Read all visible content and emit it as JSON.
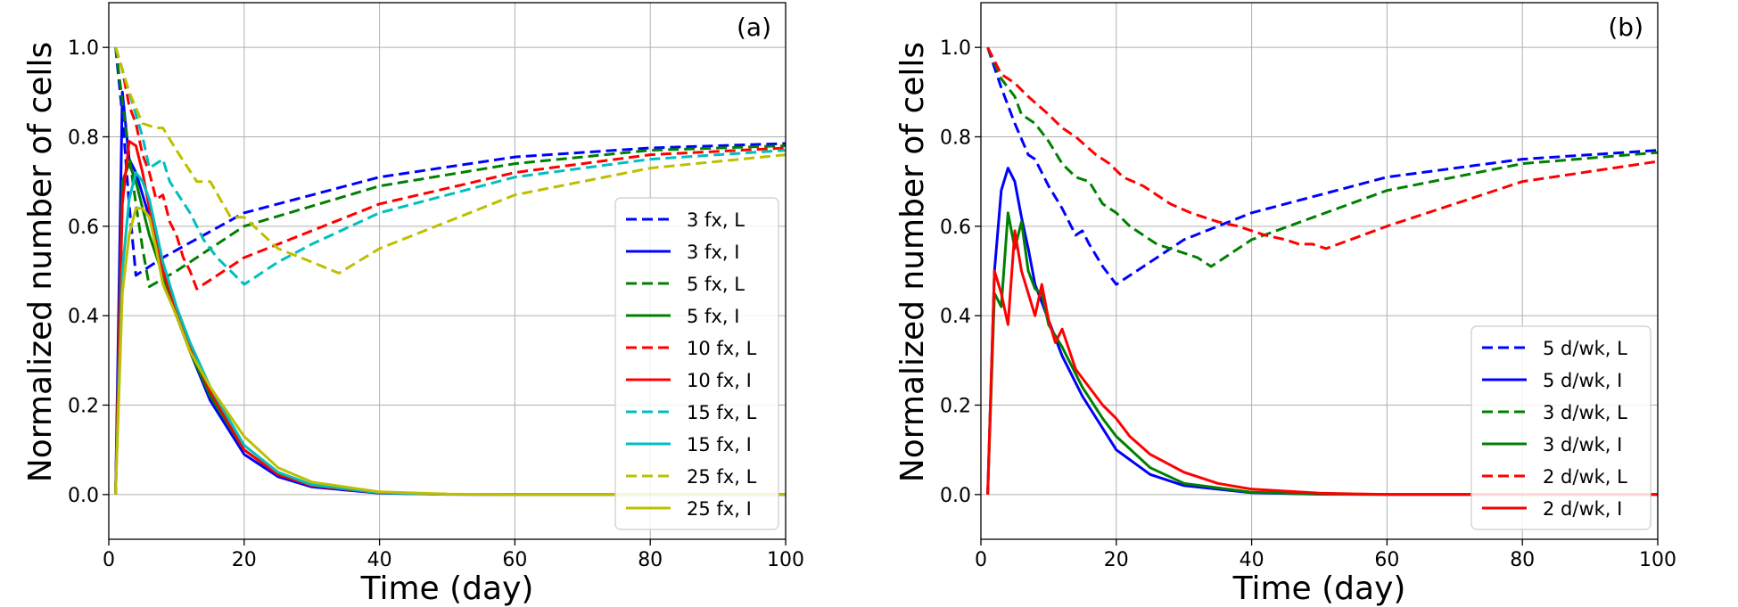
{
  "chart_data": [
    {
      "type": "line",
      "panel_label": "(a)",
      "xlabel": "Time (day)",
      "ylabel": "Normalized number of cells",
      "xlim": [
        0,
        100
      ],
      "ylim": [
        -0.1,
        1.1
      ],
      "xticks": [
        0,
        20,
        40,
        60,
        80,
        100
      ],
      "yticks": [
        0.0,
        0.2,
        0.4,
        0.6,
        0.8,
        1.0
      ],
      "xtick_labels": [
        "0",
        "20",
        "40",
        "60",
        "80",
        "100"
      ],
      "ytick_labels": [
        "0.0",
        "0.2",
        "0.4",
        "0.6",
        "0.8",
        "1.0"
      ],
      "grid": true,
      "legend_position": "center-right",
      "series": [
        {
          "name": "3 fx, L",
          "color": "#0000ff",
          "dash": true,
          "x": [
            1,
            2,
            3,
            4,
            8,
            20,
            40,
            60,
            80,
            100
          ],
          "y": [
            1.0,
            0.85,
            0.65,
            0.49,
            0.53,
            0.63,
            0.71,
            0.755,
            0.775,
            0.785
          ]
        },
        {
          "name": "3 fx, I",
          "color": "#0000ff",
          "dash": false,
          "x": [
            1,
            2,
            3,
            4,
            6,
            8,
            10,
            12,
            15,
            20,
            25,
            30,
            40,
            50,
            60,
            100
          ],
          "y": [
            0.0,
            0.9,
            0.75,
            0.72,
            0.62,
            0.5,
            0.4,
            0.32,
            0.21,
            0.09,
            0.04,
            0.017,
            0.003,
            0.0005,
            0.0,
            0.0
          ]
        },
        {
          "name": "5 fx, L",
          "color": "#008000",
          "dash": true,
          "x": [
            1,
            2,
            3,
            4,
            5,
            6,
            10,
            20,
            40,
            60,
            80,
            100
          ],
          "y": [
            1.0,
            0.88,
            0.76,
            0.65,
            0.55,
            0.465,
            0.5,
            0.6,
            0.69,
            0.74,
            0.77,
            0.78
          ]
        },
        {
          "name": "5 fx, I",
          "color": "#008000",
          "dash": false,
          "x": [
            1,
            2,
            3,
            4,
            5,
            6,
            8,
            10,
            12,
            15,
            20,
            25,
            30,
            40,
            50,
            60,
            100
          ],
          "y": [
            0.0,
            0.7,
            0.74,
            0.7,
            0.64,
            0.58,
            0.49,
            0.4,
            0.32,
            0.22,
            0.1,
            0.045,
            0.02,
            0.004,
            0.0006,
            0.0,
            0.0
          ]
        },
        {
          "name": "10 fx, L",
          "color": "#ff0000",
          "dash": true,
          "x": [
            1,
            2,
            3,
            4,
            5,
            6,
            7,
            8,
            9,
            10,
            11,
            12,
            13,
            20,
            40,
            60,
            80,
            100
          ],
          "y": [
            1.0,
            0.95,
            0.87,
            0.83,
            0.76,
            0.72,
            0.66,
            0.67,
            0.61,
            0.58,
            0.53,
            0.5,
            0.46,
            0.53,
            0.65,
            0.72,
            0.76,
            0.775
          ]
        },
        {
          "name": "10 fx, I",
          "color": "#ff0000",
          "dash": false,
          "x": [
            1,
            2,
            3,
            4,
            5,
            6,
            8,
            10,
            12,
            15,
            20,
            25,
            30,
            40,
            50,
            60,
            100
          ],
          "y": [
            0.0,
            0.65,
            0.79,
            0.78,
            0.72,
            0.64,
            0.5,
            0.41,
            0.33,
            0.23,
            0.1,
            0.045,
            0.02,
            0.004,
            0.0006,
            0.0,
            0.0
          ]
        },
        {
          "name": "15 fx, L",
          "color": "#00bfbf",
          "dash": true,
          "x": [
            1,
            3,
            5,
            6,
            8,
            9,
            12,
            14,
            16,
            18,
            20,
            25,
            30,
            40,
            60,
            80,
            100
          ],
          "y": [
            1.0,
            0.9,
            0.8,
            0.73,
            0.75,
            0.7,
            0.63,
            0.57,
            0.53,
            0.5,
            0.47,
            0.52,
            0.56,
            0.63,
            0.71,
            0.75,
            0.77
          ]
        },
        {
          "name": "15 fx, I",
          "color": "#00bfbf",
          "dash": false,
          "x": [
            1,
            2,
            3,
            4,
            5,
            6,
            8,
            10,
            12,
            15,
            20,
            25,
            30,
            40,
            50,
            60,
            100
          ],
          "y": [
            0.0,
            0.5,
            0.66,
            0.72,
            0.7,
            0.66,
            0.52,
            0.42,
            0.34,
            0.24,
            0.11,
            0.05,
            0.022,
            0.004,
            0.0006,
            0.0,
            0.0
          ]
        },
        {
          "name": "25 fx, L",
          "color": "#bfbf00",
          "dash": true,
          "x": [
            1,
            3,
            5,
            7,
            8,
            10,
            13,
            15,
            18,
            20,
            25,
            30,
            34,
            40,
            60,
            80,
            100
          ],
          "y": [
            1.0,
            0.9,
            0.83,
            0.82,
            0.82,
            0.77,
            0.7,
            0.7,
            0.62,
            0.62,
            0.55,
            0.52,
            0.495,
            0.55,
            0.67,
            0.73,
            0.76
          ]
        },
        {
          "name": "25 fx, I",
          "color": "#bfbf00",
          "dash": false,
          "x": [
            1,
            2,
            3,
            4,
            5,
            6,
            7,
            8,
            10,
            12,
            15,
            20,
            25,
            30,
            40,
            50,
            60,
            100
          ],
          "y": [
            0.0,
            0.45,
            0.58,
            0.64,
            0.64,
            0.62,
            0.55,
            0.47,
            0.4,
            0.32,
            0.24,
            0.13,
            0.06,
            0.028,
            0.006,
            0.001,
            0.0,
            0.0
          ]
        }
      ]
    },
    {
      "type": "line",
      "panel_label": "(b)",
      "xlabel": "Time (day)",
      "ylabel": "Normalized number of cells",
      "xlim": [
        0,
        100
      ],
      "ylim": [
        -0.1,
        1.1
      ],
      "xticks": [
        0,
        20,
        40,
        60,
        80,
        100
      ],
      "yticks": [
        0.0,
        0.2,
        0.4,
        0.6,
        0.8,
        1.0
      ],
      "xtick_labels": [
        "0",
        "20",
        "40",
        "60",
        "80",
        "100"
      ],
      "ytick_labels": [
        "0.0",
        "0.2",
        "0.4",
        "0.6",
        "0.8",
        "1.0"
      ],
      "grid": true,
      "legend_position": "lower-right",
      "series": [
        {
          "name": "5 d/wk, L",
          "color": "#0000ff",
          "dash": true,
          "x": [
            1,
            3,
            5,
            7,
            8,
            10,
            12,
            14,
            15,
            16,
            18,
            20,
            25,
            30,
            40,
            60,
            80,
            100
          ],
          "y": [
            1.0,
            0.91,
            0.83,
            0.76,
            0.75,
            0.69,
            0.64,
            0.58,
            0.59,
            0.56,
            0.51,
            0.47,
            0.52,
            0.57,
            0.63,
            0.71,
            0.75,
            0.77
          ]
        },
        {
          "name": "5 d/wk, I",
          "color": "#0000ff",
          "dash": false,
          "x": [
            1,
            2,
            3,
            4,
            5,
            6,
            7,
            8,
            10,
            12,
            15,
            20,
            25,
            30,
            40,
            50,
            60,
            100
          ],
          "y": [
            0.0,
            0.5,
            0.68,
            0.73,
            0.7,
            0.62,
            0.55,
            0.47,
            0.39,
            0.31,
            0.22,
            0.1,
            0.045,
            0.02,
            0.004,
            0.0006,
            0.0,
            0.0
          ]
        },
        {
          "name": "3 d/wk, L",
          "color": "#008000",
          "dash": true,
          "x": [
            1,
            3,
            5,
            6,
            8,
            10,
            12,
            14,
            16,
            18,
            20,
            22,
            24,
            26,
            28,
            30,
            32,
            34,
            40,
            60,
            80,
            100
          ],
          "y": [
            1.0,
            0.93,
            0.89,
            0.85,
            0.83,
            0.79,
            0.74,
            0.71,
            0.7,
            0.65,
            0.63,
            0.6,
            0.58,
            0.56,
            0.55,
            0.54,
            0.53,
            0.51,
            0.57,
            0.68,
            0.74,
            0.765
          ]
        },
        {
          "name": "3 d/wk, I",
          "color": "#008000",
          "dash": false,
          "x": [
            1,
            2,
            3,
            4,
            5,
            6,
            7,
            8,
            9,
            10,
            12,
            15,
            18,
            20,
            25,
            30,
            40,
            50,
            60,
            100
          ],
          "y": [
            0.0,
            0.45,
            0.42,
            0.63,
            0.55,
            0.61,
            0.5,
            0.46,
            0.45,
            0.38,
            0.33,
            0.24,
            0.17,
            0.13,
            0.06,
            0.025,
            0.005,
            0.001,
            0.0,
            0.0
          ]
        },
        {
          "name": "2 d/wk, L",
          "color": "#ff0000",
          "dash": true,
          "x": [
            1,
            3,
            5,
            7,
            10,
            12,
            14,
            17,
            19,
            21,
            24,
            26,
            28,
            31,
            33,
            35,
            38,
            40,
            42,
            45,
            47,
            49,
            51,
            60,
            80,
            100
          ],
          "y": [
            1.0,
            0.94,
            0.92,
            0.89,
            0.85,
            0.82,
            0.8,
            0.76,
            0.74,
            0.71,
            0.69,
            0.67,
            0.65,
            0.63,
            0.62,
            0.61,
            0.6,
            0.59,
            0.58,
            0.57,
            0.56,
            0.56,
            0.55,
            0.6,
            0.7,
            0.745
          ]
        },
        {
          "name": "2 d/wk, I",
          "color": "#ff0000",
          "dash": false,
          "x": [
            1,
            2,
            3,
            4,
            5,
            6,
            7,
            8,
            9,
            10,
            11,
            12,
            14,
            16,
            18,
            20,
            22,
            25,
            30,
            35,
            40,
            50,
            60,
            100
          ],
          "y": [
            0.0,
            0.5,
            0.45,
            0.38,
            0.59,
            0.5,
            0.45,
            0.4,
            0.47,
            0.39,
            0.34,
            0.37,
            0.28,
            0.24,
            0.2,
            0.17,
            0.13,
            0.09,
            0.05,
            0.025,
            0.012,
            0.003,
            0.0,
            0.0
          ]
        }
      ]
    }
  ]
}
